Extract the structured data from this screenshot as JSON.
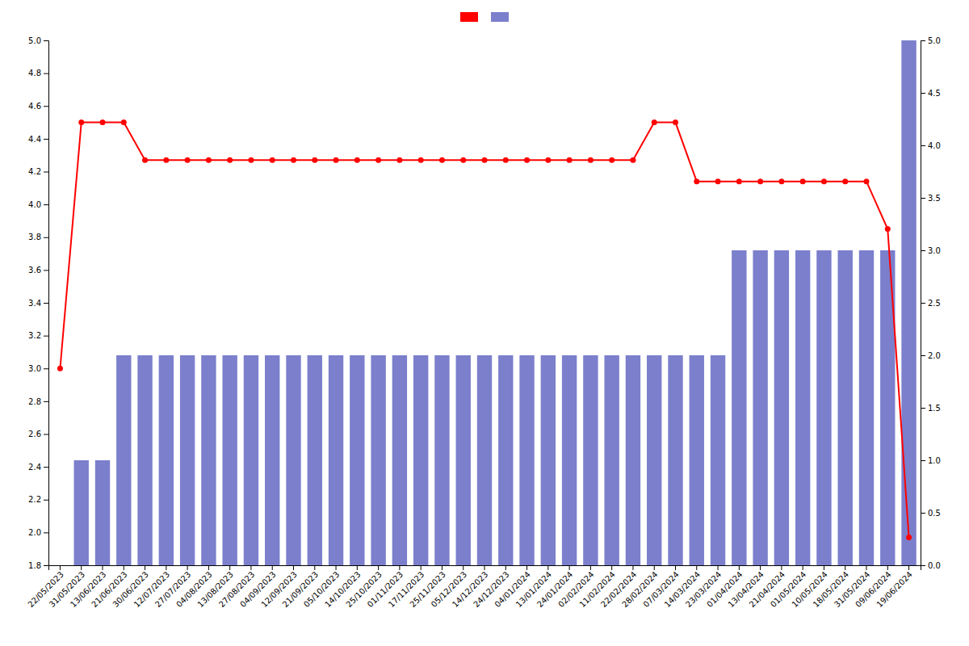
{
  "chart_data": {
    "type": "bar",
    "categories": [
      "22/05/2023",
      "31/05/2023",
      "13/06/2023",
      "21/06/2023",
      "30/06/2023",
      "12/07/2023",
      "27/07/2023",
      "04/08/2023",
      "13/08/2023",
      "27/08/2023",
      "04/09/2023",
      "12/09/2023",
      "21/09/2023",
      "05/10/2023",
      "14/10/2023",
      "25/10/2023",
      "01/11/2023",
      "17/11/2023",
      "25/11/2023",
      "05/12/2023",
      "14/12/2023",
      "24/12/2023",
      "04/01/2024",
      "13/01/2024",
      "24/01/2024",
      "02/02/2024",
      "11/02/2024",
      "22/02/2024",
      "28/02/2024",
      "07/03/2024",
      "14/03/2024",
      "23/03/2024",
      "01/04/2024",
      "13/04/2024",
      "21/04/2024",
      "01/05/2024",
      "10/05/2024",
      "18/05/2024",
      "31/05/2024",
      "09/06/2024",
      "19/06/2024"
    ],
    "series": [
      {
        "type": "line",
        "color": "#ff0000",
        "marker": "circle",
        "values": [
          3.0,
          4.5,
          4.5,
          4.5,
          4.27,
          4.27,
          4.27,
          4.27,
          4.27,
          4.27,
          4.27,
          4.27,
          4.27,
          4.27,
          4.27,
          4.27,
          4.27,
          4.27,
          4.27,
          4.27,
          4.27,
          4.27,
          4.27,
          4.27,
          4.27,
          4.27,
          4.27,
          4.27,
          4.5,
          4.5,
          4.14,
          4.14,
          4.14,
          4.14,
          4.14,
          4.14,
          4.14,
          4.14,
          4.14,
          3.85,
          1.97
        ]
      },
      {
        "type": "bar",
        "color": "#7b7fcc",
        "axis": "y2",
        "values": [
          0,
          1,
          1,
          2,
          2,
          2,
          2,
          2,
          2,
          2,
          2,
          2,
          2,
          2,
          2,
          2,
          2,
          2,
          2,
          2,
          2,
          2,
          2,
          2,
          2,
          2,
          2,
          2,
          2,
          2,
          2,
          2,
          3,
          3,
          3,
          3,
          3,
          3,
          3,
          3,
          5
        ]
      }
    ],
    "ylim": [
      1.8,
      5.0
    ],
    "yticks": [
      1.8,
      {
        "value": 2.0,
        "label": "2.0"
      },
      2.2,
      2.4,
      2.6,
      2.8,
      {
        "value": 3.0,
        "label": "3.0"
      },
      3.2,
      3.4,
      3.6,
      3.8,
      {
        "value": 4.0,
        "label": "4.0"
      },
      4.2,
      4.4,
      4.6,
      4.8,
      {
        "value": 5.0,
        "label": "5.0"
      }
    ],
    "y2lim": [
      0,
      5
    ],
    "y2ticks": [
      {
        "value": 0,
        "label": "0.0"
      },
      0.5,
      {
        "value": 1.0,
        "label": "1.0"
      },
      1.5,
      {
        "value": 2.0,
        "label": "2.0"
      },
      2.5,
      {
        "value": 3.0,
        "label": "3.0"
      },
      3.5,
      {
        "value": 4.0,
        "label": "4.0"
      },
      4.5,
      {
        "value": 5.0,
        "label": "5.0"
      }
    ],
    "grid": false,
    "legend": "top"
  }
}
